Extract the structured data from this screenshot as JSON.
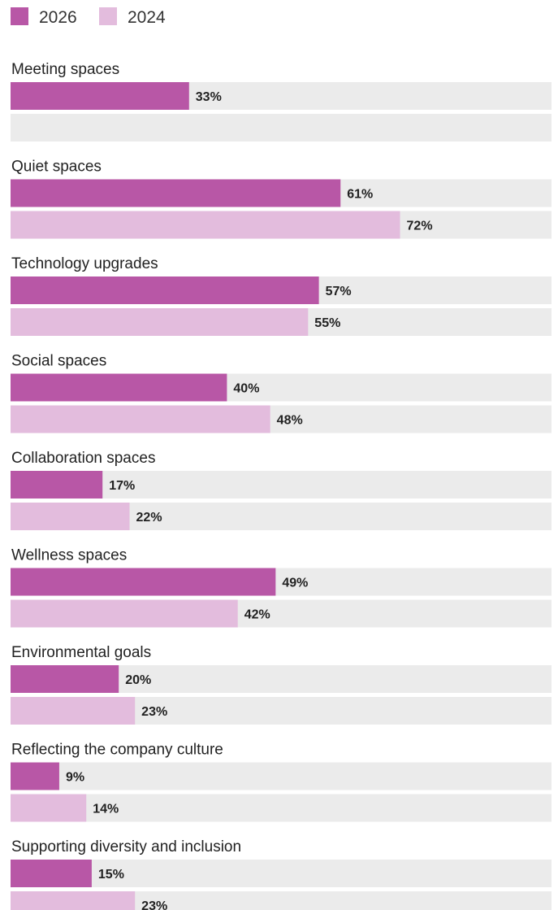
{
  "chart_data": {
    "type": "bar",
    "orientation": "horizontal",
    "xlim": [
      0,
      100
    ],
    "legend_placement": "top-left",
    "grid": false,
    "series": [
      {
        "name": "2026",
        "color": "#b857a6"
      },
      {
        "name": "2024",
        "color": "#e3bcdd"
      }
    ],
    "track_color": "#ebebeb",
    "categories": [
      "Meeting spaces",
      "Quiet spaces",
      "Technology upgrades",
      "Social spaces",
      "Collaboration spaces",
      "Wellness spaces",
      "Environmental goals",
      "Reflecting the company culture",
      "Supporting diversity and inclusion"
    ],
    "values": [
      [
        33,
        null
      ],
      [
        61,
        72
      ],
      [
        57,
        55
      ],
      [
        40,
        48
      ],
      [
        17,
        22
      ],
      [
        49,
        42
      ],
      [
        20,
        23
      ],
      [
        9,
        14
      ],
      [
        15,
        23
      ]
    ],
    "labels": [
      [
        "33%",
        ""
      ],
      [
        "61%",
        "72%"
      ],
      [
        "57%",
        "55%"
      ],
      [
        "40%",
        "48%"
      ],
      [
        "17%",
        "22%"
      ],
      [
        "49%",
        "42%"
      ],
      [
        "20%",
        "23%"
      ],
      [
        "9%",
        "14%"
      ],
      [
        "15%",
        "23%"
      ]
    ]
  }
}
